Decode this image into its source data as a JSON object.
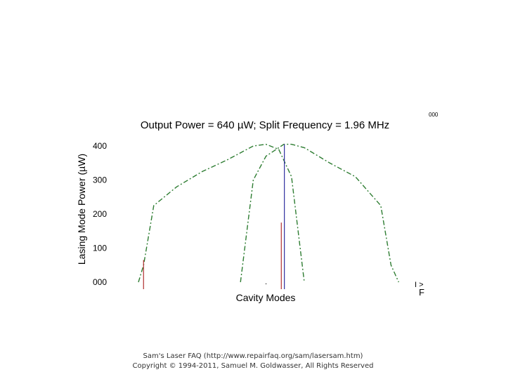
{
  "chart_data": {
    "type": "line",
    "title": "Output Power = 640 µW; Split Frequency = 1.96 MHz",
    "xlabel": "Cavity Modes",
    "ylabel": "Lasing Mode Power (µW)",
    "yticks": [
      "400",
      "300",
      "200",
      "100",
      "000"
    ],
    "ylim": [
      0,
      420
    ],
    "xlim": [
      0,
      100
    ],
    "grid": false,
    "series": [
      {
        "color": "#2e7d32",
        "style": "dashed",
        "x": [
          0,
          2,
          6,
          15,
          25,
          35,
          45,
          50,
          55,
          60,
          65
        ],
        "y": [
          0,
          50,
          225,
          280,
          325,
          360,
          400,
          405,
          390,
          310,
          0
        ]
      },
      {
        "color": "#2e7d32",
        "style": "dashed",
        "x": [
          40,
          45,
          50,
          57,
          60,
          65,
          75,
          85,
          95,
          99,
          102
        ],
        "y": [
          0,
          300,
          370,
          405,
          405,
          395,
          350,
          310,
          225,
          50,
          0
        ]
      }
    ],
    "mode_lines": [
      {
        "x": 2,
        "y": 65,
        "color": "#b03030"
      },
      {
        "x": 56,
        "y": 175,
        "color": "#b03030"
      },
      {
        "x": 57.2,
        "y": 405,
        "color": "#3030a0"
      }
    ],
    "corner_label": "000",
    "side_labels": [
      "I >",
      "F"
    ]
  },
  "credit": {
    "line1": "Sam's Laser FAQ (http://www.repairfaq.org/sam/lasersam.htm)",
    "line2": "Copyright © 1994-2011, Samuel M. Goldwasser, All Rights Reserved"
  }
}
